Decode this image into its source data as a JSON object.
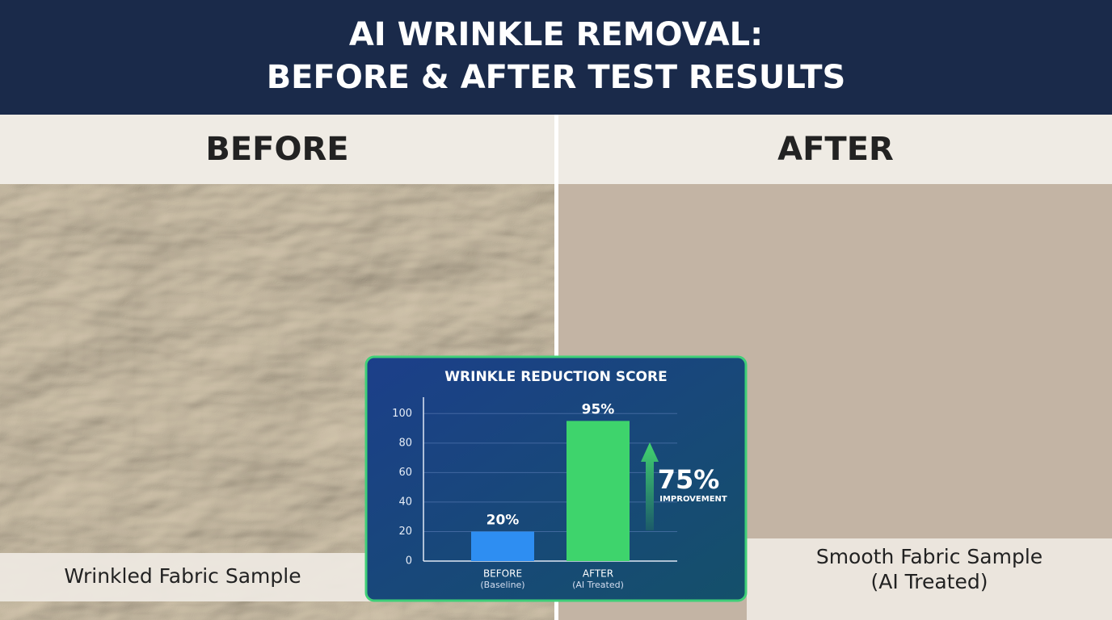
{
  "header": {
    "title": [
      "AI WRINKLE REMOVAL:",
      "BEFORE & AFTER TEST RESULTS"
    ]
  },
  "panels": {
    "before": {
      "label": "BEFORE",
      "caption": "Wrinkled Fabric Sample"
    },
    "after": {
      "label": "AFTER",
      "caption": [
        "Smooth Fabric Sample",
        "(AI Treated)"
      ]
    }
  },
  "chart_data": {
    "type": "bar",
    "title": "WRINKLE REDUCTION SCORE",
    "categories": [
      "BEFORE",
      "AFTER"
    ],
    "sublabels": [
      "(Baseline)",
      "(AI Treated)"
    ],
    "values": [
      20,
      95
    ],
    "value_labels": [
      "20%",
      "95%"
    ],
    "colors": [
      "#2e8ef2",
      "#3ed46c"
    ],
    "ylim": [
      0,
      110
    ],
    "yticks": [
      0,
      20,
      40,
      60,
      80,
      100
    ],
    "grid": true,
    "annotation": {
      "value": "75%",
      "label": "IMPROVEMENT"
    }
  }
}
